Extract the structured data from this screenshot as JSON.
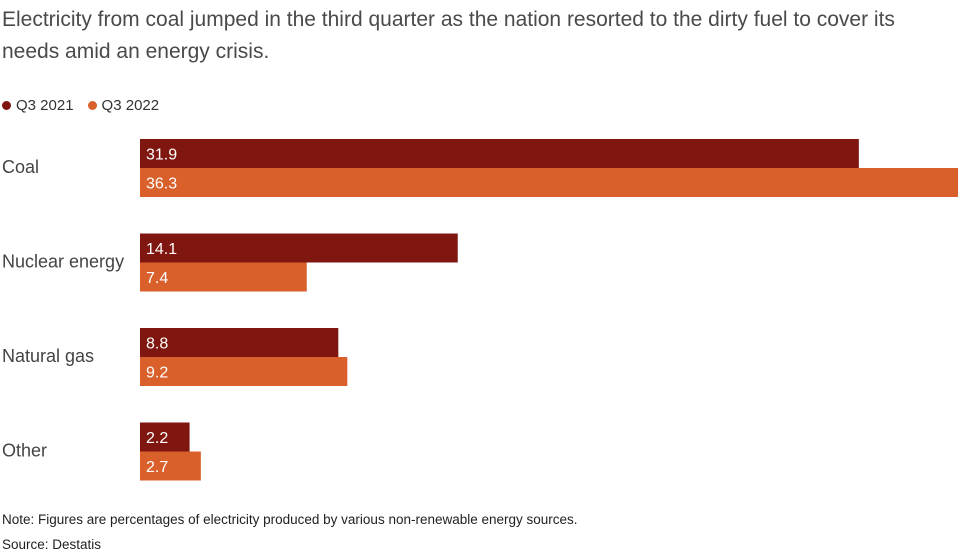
{
  "subtitle": "Electricity from coal jumped in the third quarter as the nation resorted to the dirty fuel to cover its needs amid an energy crisis.",
  "legend": [
    {
      "label": "Q3 2021",
      "color": "#7f1710"
    },
    {
      "label": "Q3 2022",
      "color": "#d95f2b"
    }
  ],
  "chart_data": {
    "type": "bar",
    "orientation": "horizontal",
    "categories": [
      "Coal",
      "Nuclear energy",
      "Natural gas",
      "Other"
    ],
    "series": [
      {
        "name": "Q3 2021",
        "values": [
          31.9,
          14.1,
          8.8,
          2.2
        ],
        "color": "#7f1710"
      },
      {
        "name": "Q3 2022",
        "values": [
          36.3,
          7.4,
          9.2,
          2.7
        ],
        "color": "#d95f2b"
      }
    ],
    "xlim": [
      0,
      36.3
    ],
    "grid": false,
    "legend_position": "top-left"
  },
  "note": "Note: Figures are percentages of electricity produced by various non-renewable energy sources.",
  "source": "Source: Destatis"
}
